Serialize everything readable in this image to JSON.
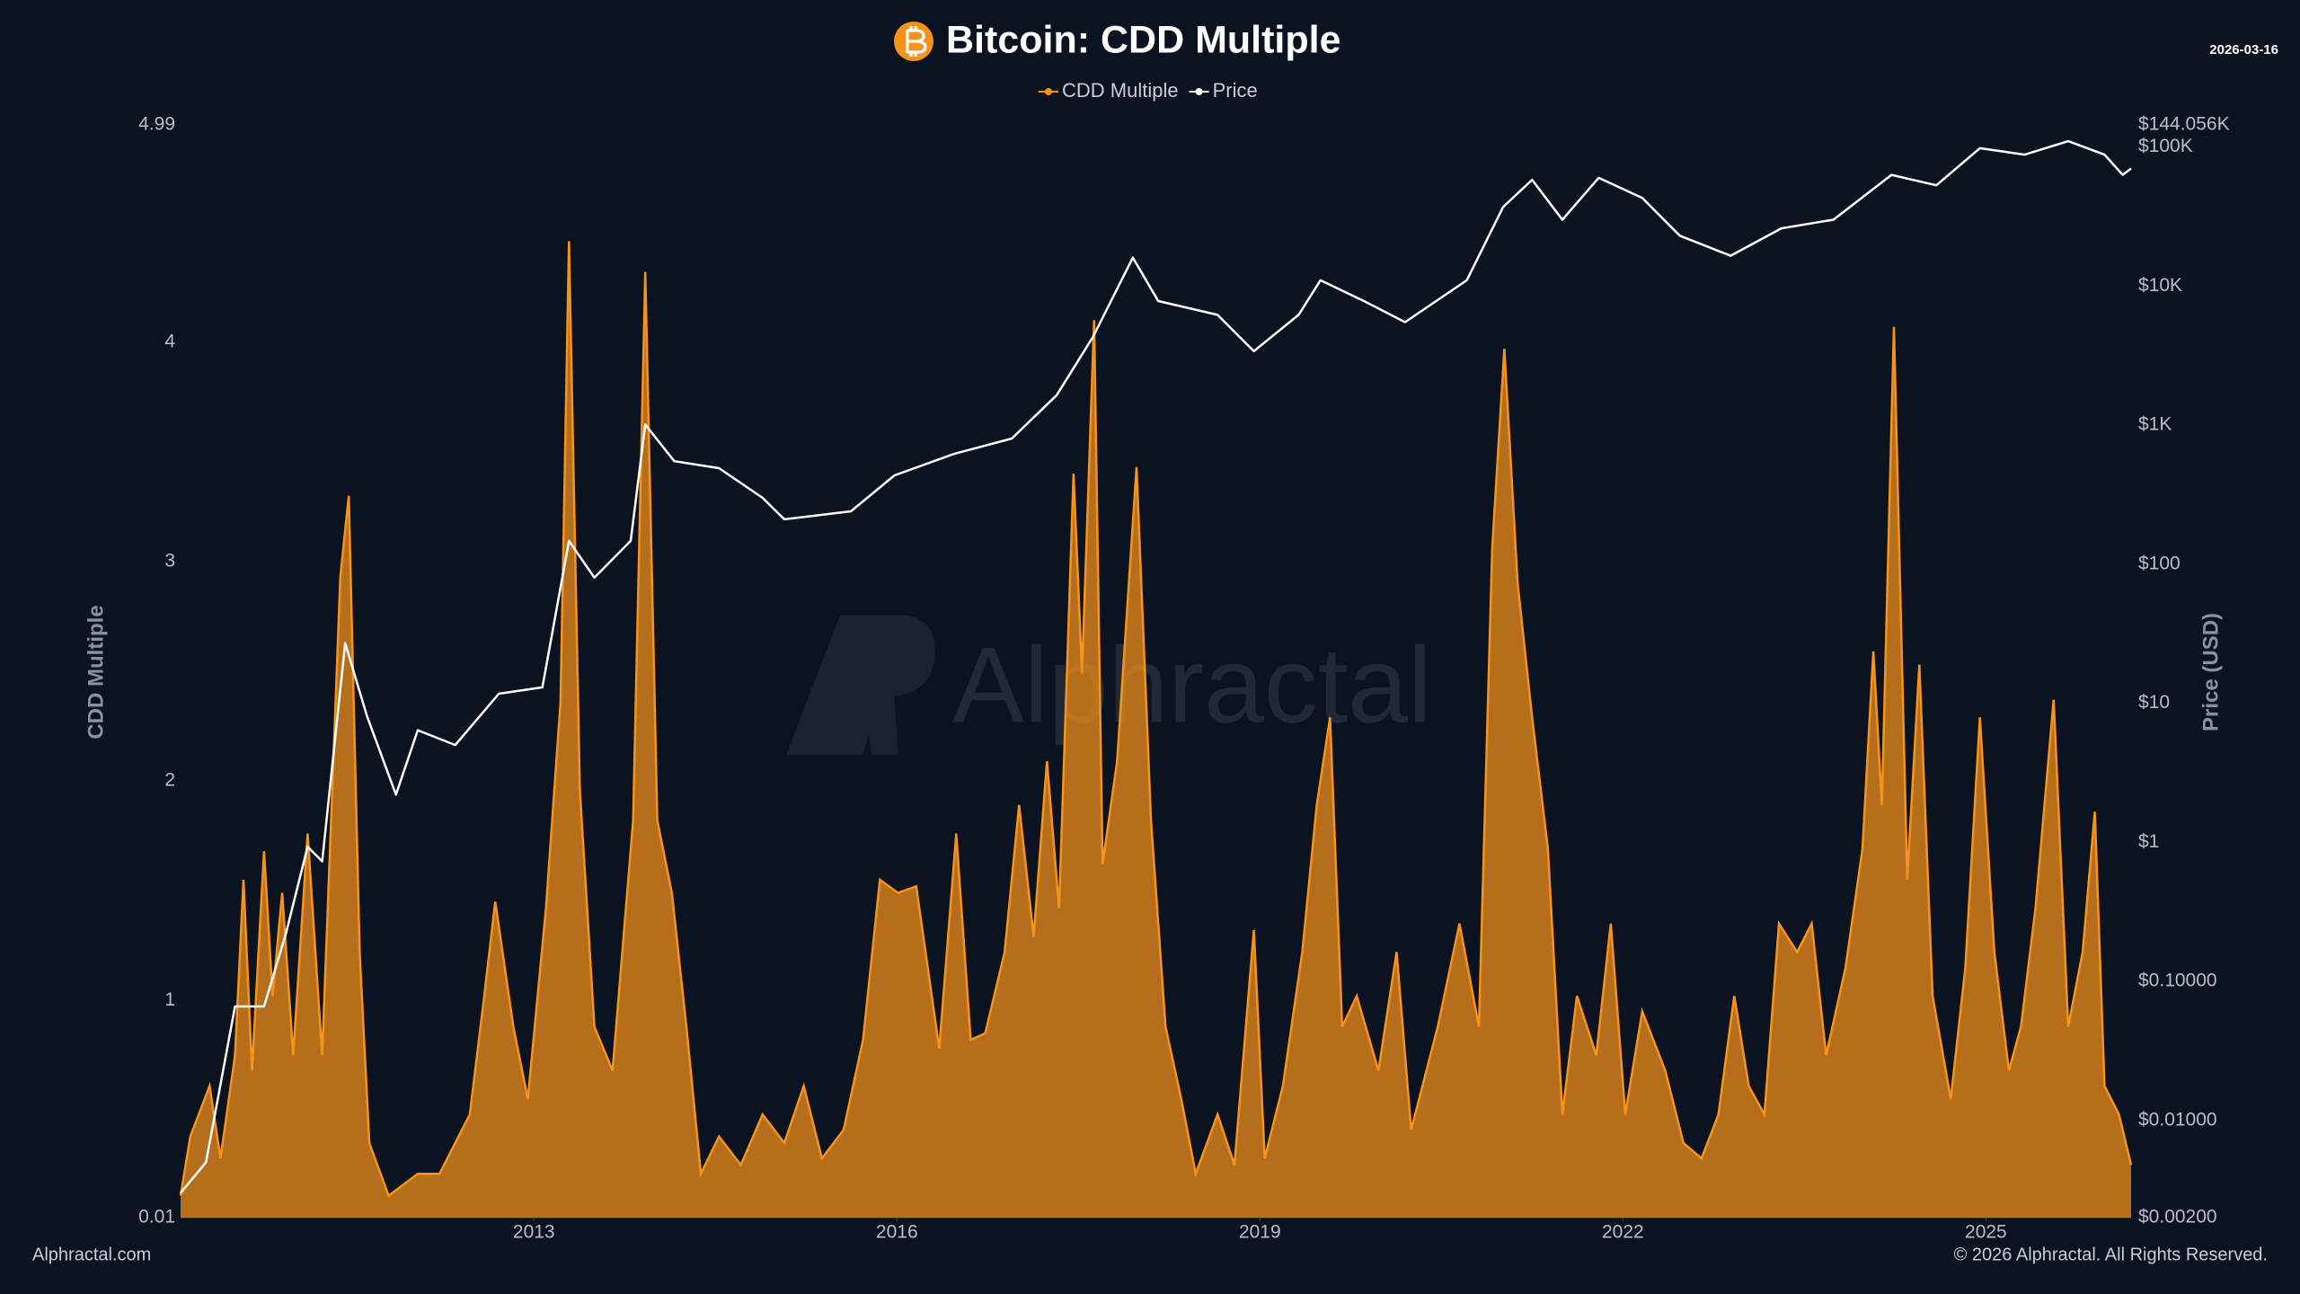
{
  "chart_data": {
    "type": "area-line",
    "title": "Bitcoin: CDD Multiple",
    "date": "2026-03-16",
    "watermark": "Alphractal",
    "source": "Alphractal.com",
    "copyright": "© 2026 Alphractal. All Rights Reserved.",
    "ylabel": "CDD Multiple",
    "y2label": "Price (USD)",
    "xlim": [
      2010.08,
      2026.2
    ],
    "xticks": [
      2013,
      2016,
      2019,
      2022,
      2025
    ],
    "ylim": [
      0.01,
      4.99
    ],
    "yticks": [
      0.01,
      1,
      2,
      3,
      4,
      4.99
    ],
    "y2lim": [
      0.002,
      144056
    ],
    "y2log": true,
    "y2ticks": [
      {
        "value": 0.002,
        "label": "$0.00200"
      },
      {
        "value": 0.01,
        "label": "$0.01000"
      },
      {
        "value": 0.1,
        "label": "$0.10000"
      },
      {
        "value": 1,
        "label": "$1"
      },
      {
        "value": 10,
        "label": "$10"
      },
      {
        "value": 100,
        "label": "$100"
      },
      {
        "value": 1000,
        "label": "$1K"
      },
      {
        "value": 10000,
        "label": "$10K"
      },
      {
        "value": 100000,
        "label": "$100K"
      },
      {
        "value": 144056,
        "label": "$144.056K"
      }
    ],
    "grid": false,
    "legend": "top",
    "series": [
      {
        "name": "CDD Multiple",
        "color": "#f7931a",
        "kind": "area",
        "axis": "y",
        "x": [
          2010.08,
          2010.16,
          2010.32,
          2010.41,
          2010.53,
          2010.6,
          2010.67,
          2010.77,
          2010.84,
          2010.92,
          2011.01,
          2011.13,
          2011.25,
          2011.4,
          2011.47,
          2011.56,
          2011.64,
          2011.8,
          2012.04,
          2012.22,
          2012.47,
          2012.59,
          2012.68,
          2012.83,
          2012.95,
          2013.1,
          2013.22,
          2013.29,
          2013.38,
          2013.5,
          2013.65,
          2013.82,
          2013.92,
          2014.02,
          2014.14,
          2014.26,
          2014.38,
          2014.53,
          2014.71,
          2014.89,
          2015.07,
          2015.23,
          2015.38,
          2015.56,
          2015.72,
          2015.86,
          2016.01,
          2016.16,
          2016.35,
          2016.49,
          2016.61,
          2016.73,
          2016.89,
          2017.01,
          2017.13,
          2017.24,
          2017.34,
          2017.46,
          2017.53,
          2017.63,
          2017.7,
          2017.82,
          2017.98,
          2018.1,
          2018.22,
          2018.35,
          2018.47,
          2018.65,
          2018.79,
          2018.95,
          2019.04,
          2019.19,
          2019.35,
          2019.47,
          2019.58,
          2019.68,
          2019.8,
          2019.98,
          2020.13,
          2020.25,
          2020.47,
          2020.65,
          2020.81,
          2020.92,
          2021.02,
          2021.13,
          2021.25,
          2021.38,
          2021.5,
          2021.62,
          2021.78,
          2021.9,
          2022.02,
          2022.16,
          2022.35,
          2022.5,
          2022.65,
          2022.79,
          2022.92,
          2023.04,
          2023.17,
          2023.29,
          2023.44,
          2023.56,
          2023.68,
          2023.84,
          2023.98,
          2024.07,
          2024.14,
          2024.24,
          2024.35,
          2024.45,
          2024.56,
          2024.71,
          2024.83,
          2024.95,
          2025.07,
          2025.19,
          2025.29,
          2025.41,
          2025.56,
          2025.68,
          2025.8,
          2025.9,
          2025.98,
          2026.1,
          2026.2
        ],
        "values": [
          0.11,
          0.38,
          0.61,
          0.28,
          0.75,
          1.55,
          0.68,
          1.68,
          1.02,
          1.49,
          0.75,
          1.76,
          0.75,
          2.93,
          3.3,
          1.22,
          0.35,
          0.11,
          0.21,
          0.21,
          0.48,
          1.02,
          1.45,
          0.88,
          0.55,
          1.42,
          2.36,
          4.46,
          1.96,
          0.88,
          0.68,
          1.82,
          4.32,
          1.82,
          1.49,
          0.88,
          0.21,
          0.38,
          0.25,
          0.48,
          0.35,
          0.61,
          0.28,
          0.41,
          0.82,
          1.55,
          1.49,
          1.52,
          0.78,
          1.76,
          0.82,
          0.85,
          1.22,
          1.89,
          1.29,
          2.09,
          1.42,
          3.4,
          2.49,
          4.1,
          1.62,
          2.09,
          3.43,
          1.82,
          0.88,
          0.55,
          0.21,
          0.48,
          0.25,
          1.32,
          0.28,
          0.61,
          1.22,
          1.89,
          2.29,
          0.88,
          1.02,
          0.68,
          1.22,
          0.41,
          0.88,
          1.35,
          0.88,
          3.06,
          3.97,
          2.9,
          2.29,
          1.69,
          0.48,
          1.02,
          0.75,
          1.35,
          0.48,
          0.95,
          0.68,
          0.35,
          0.28,
          0.48,
          1.02,
          0.61,
          0.48,
          1.35,
          1.22,
          1.35,
          0.75,
          1.15,
          1.69,
          2.59,
          1.89,
          4.07,
          1.55,
          2.53,
          1.02,
          0.55,
          1.15,
          2.29,
          1.22,
          0.68,
          0.88,
          1.42,
          2.37,
          0.88,
          1.22,
          1.86,
          0.61,
          0.48,
          0.25
        ]
      },
      {
        "name": "Price",
        "color": "#ffffff",
        "kind": "line",
        "axis": "y2",
        "x": [
          2010.08,
          2010.29,
          2010.53,
          2010.77,
          2010.95,
          2011.13,
          2011.25,
          2011.44,
          2011.62,
          2011.86,
          2012.04,
          2012.35,
          2012.71,
          2013.07,
          2013.29,
          2013.5,
          2013.8,
          2013.92,
          2014.16,
          2014.53,
          2014.89,
          2015.07,
          2015.62,
          2015.98,
          2016.47,
          2016.95,
          2017.32,
          2017.62,
          2017.95,
          2018.16,
          2018.65,
          2018.95,
          2019.32,
          2019.5,
          2019.86,
          2020.2,
          2020.71,
          2021.01,
          2021.25,
          2021.5,
          2021.8,
          2022.16,
          2022.47,
          2022.89,
          2023.31,
          2023.74,
          2024.22,
          2024.59,
          2024.95,
          2025.32,
          2025.68,
          2025.98,
          2026.13,
          2026.2
        ],
        "values": [
          0.003,
          0.005,
          0.066,
          0.066,
          0.22,
          0.93,
          0.73,
          27,
          8.1,
          2.2,
          6.4,
          5.0,
          11.7,
          13,
          147,
          80,
          147,
          1010,
          550,
          490,
          300,
          210,
          240,
          435,
          620,
          800,
          1640,
          4300,
          16000,
          7800,
          6200,
          3400,
          6200,
          11000,
          7800,
          5500,
          11000,
          37000,
          58000,
          30000,
          60000,
          43000,
          23000,
          16500,
          26000,
          30000,
          63000,
          53000,
          98000,
          88000,
          110000,
          88000,
          63000,
          70000
        ]
      }
    ]
  }
}
